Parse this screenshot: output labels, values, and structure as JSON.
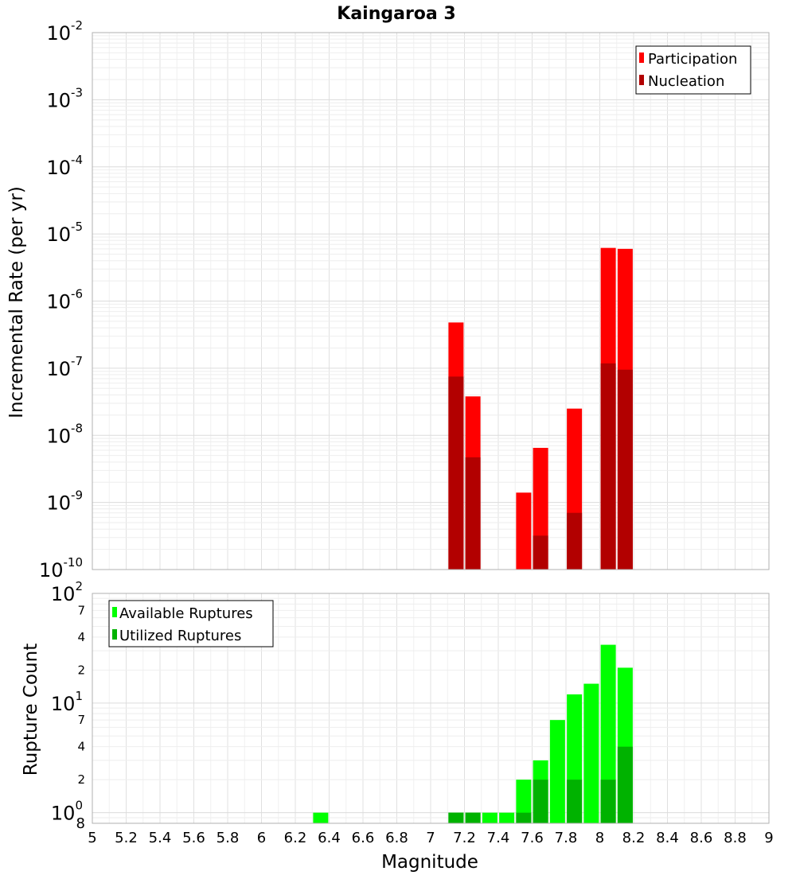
{
  "chart_data": [
    {
      "type": "bar",
      "title": "Kaingaroa 3",
      "xlabel": "",
      "ylabel": "Incremental Rate (per yr)",
      "yscale": "log",
      "ylim": [
        1e-10,
        0.01
      ],
      "xlim": [
        5,
        9
      ],
      "grid": true,
      "legend_position": "top-right",
      "y_tick_labels": [
        {
          "base": "10",
          "exp": "-10"
        },
        {
          "base": "10",
          "exp": "-9"
        },
        {
          "base": "10",
          "exp": "-8"
        },
        {
          "base": "10",
          "exp": "-7"
        },
        {
          "base": "10",
          "exp": "-6"
        },
        {
          "base": "10",
          "exp": "-5"
        },
        {
          "base": "10",
          "exp": "-4"
        },
        {
          "base": "10",
          "exp": "-3"
        },
        {
          "base": "10",
          "exp": "-2"
        }
      ],
      "series": [
        {
          "name": "Participation",
          "color": "#ff0000",
          "x": [
            7.15,
            7.25,
            7.55,
            7.65,
            7.85,
            8.05,
            8.15
          ],
          "values": [
            4.8e-07,
            3.8e-08,
            1.4e-09,
            6.5e-09,
            2.5e-08,
            6.2e-06,
            6e-06
          ]
        },
        {
          "name": "Nucleation",
          "color": "#b20000",
          "x": [
            7.15,
            7.25,
            7.65,
            7.85,
            8.05,
            8.15
          ],
          "values": [
            7.5e-08,
            4.7e-09,
            3.2e-10,
            7e-10,
            1.18e-07,
            9.5e-08
          ]
        }
      ]
    },
    {
      "type": "bar",
      "title": "",
      "xlabel": "Magnitude",
      "ylabel": "Rupture Count",
      "yscale": "log",
      "ylim": [
        0.8,
        100
      ],
      "xlim": [
        5,
        9
      ],
      "grid": true,
      "legend_position": "top-left",
      "x_tick_labels": [
        "5",
        "5.2",
        "5.4",
        "5.6",
        "5.8",
        "6",
        "6.2",
        "6.4",
        "6.6",
        "6.8",
        "7",
        "7.2",
        "7.4",
        "7.6",
        "7.8",
        "8",
        "8.2",
        "8.4",
        "8.6",
        "8.8",
        "9"
      ],
      "y_major_labels": [
        {
          "base": "10",
          "exp": "0"
        },
        {
          "base": "10",
          "exp": "1"
        },
        {
          "base": "10",
          "exp": "2"
        }
      ],
      "y_minor_labels": [
        "8",
        "2",
        "4",
        "7",
        "2",
        "4",
        "7"
      ],
      "series": [
        {
          "name": "Available Ruptures",
          "color": "#00ff00",
          "x": [
            6.35,
            7.15,
            7.25,
            7.35,
            7.45,
            7.55,
            7.65,
            7.75,
            7.85,
            7.95,
            8.05,
            8.15
          ],
          "values": [
            1,
            1,
            1,
            1,
            1,
            2,
            3,
            7,
            12,
            15,
            34,
            21
          ]
        },
        {
          "name": "Utilized Ruptures",
          "color": "#00b200",
          "x": [
            7.15,
            7.25,
            7.55,
            7.65,
            7.85,
            8.05,
            8.15
          ],
          "values": [
            1,
            1,
            1,
            2,
            2,
            2,
            4
          ]
        }
      ]
    }
  ]
}
